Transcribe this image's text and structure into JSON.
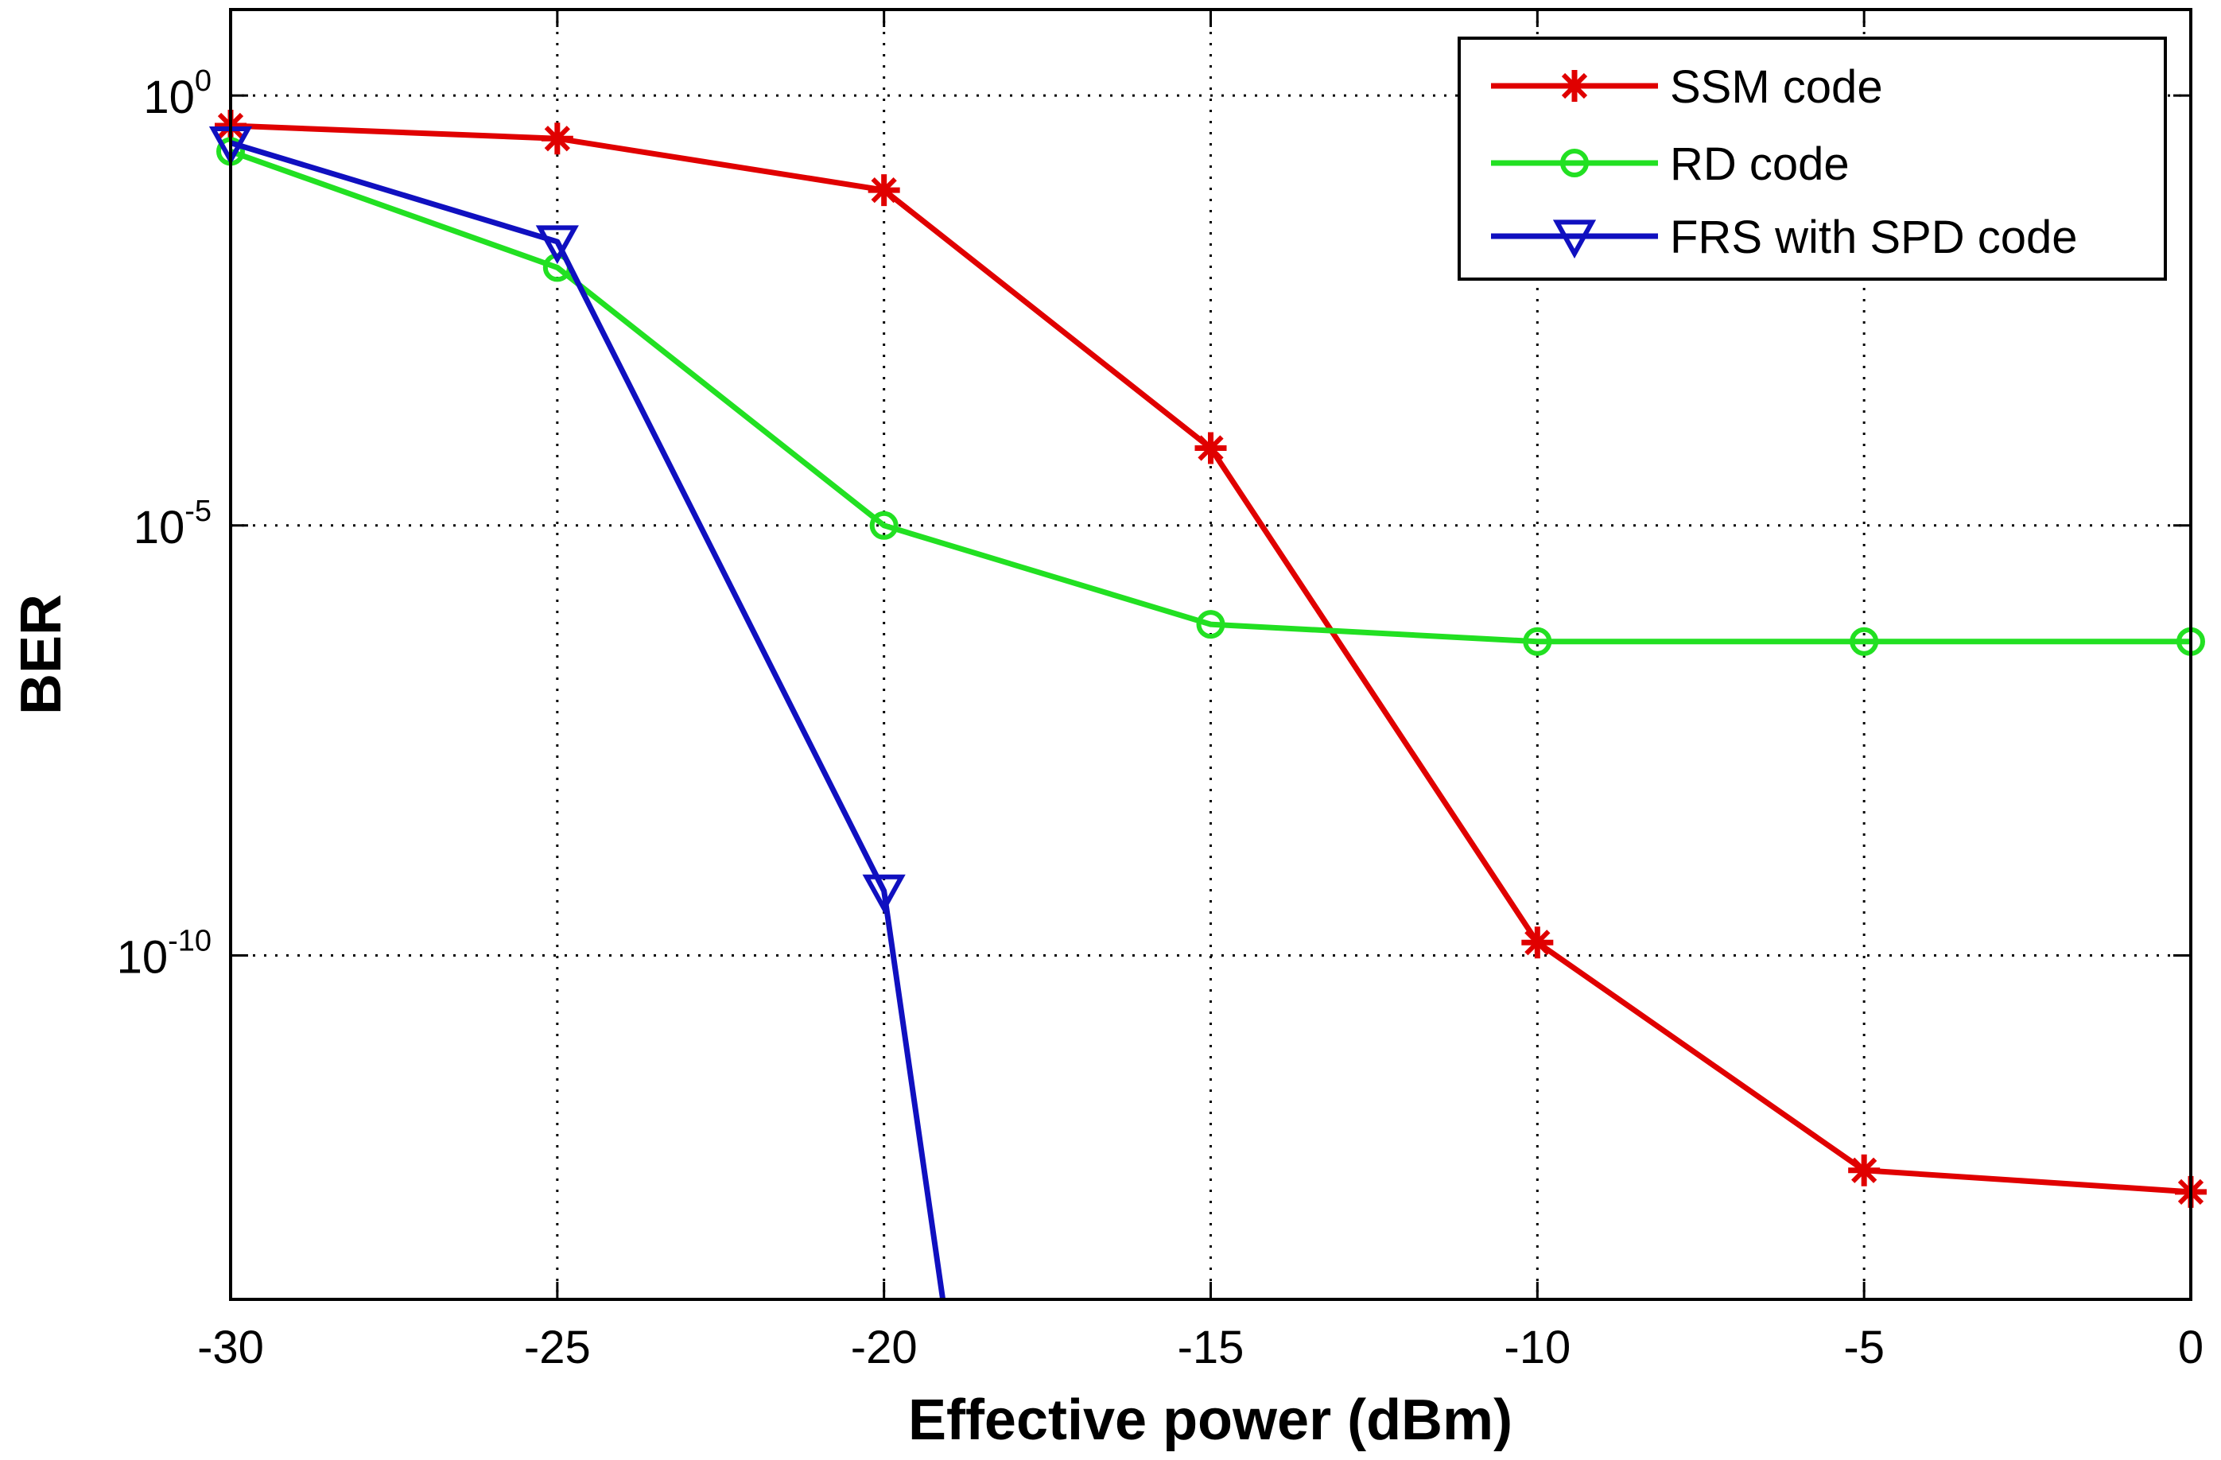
{
  "chart_data": {
    "type": "line",
    "title": "",
    "xlabel": "Effective power (dBm)",
    "ylabel": "BER",
    "yscale": "log",
    "xlim": [
      -30,
      0
    ],
    "ylim_exp": [
      -14,
      1
    ],
    "grid": true,
    "legend_position": "top-right",
    "x_ticks": [
      {
        "value": -30,
        "label": "-30"
      },
      {
        "value": -25,
        "label": "-25"
      },
      {
        "value": -20,
        "label": "-20"
      },
      {
        "value": -15,
        "label": "-15"
      },
      {
        "value": -10,
        "label": "-10"
      },
      {
        "value": -5,
        "label": "-5"
      },
      {
        "value": 0,
        "label": "0"
      }
    ],
    "y_ticks": [
      {
        "exp": 0,
        "base": "10",
        "sup": "0"
      },
      {
        "exp": -5,
        "base": "10",
        "sup": "-5"
      },
      {
        "exp": -10,
        "base": "10",
        "sup": "-10"
      }
    ],
    "series": [
      {
        "name": "SSM code",
        "color": "#e00000",
        "marker": "star",
        "points": [
          {
            "x": -30,
            "log10_y": -0.35
          },
          {
            "x": -25,
            "log10_y": -0.5
          },
          {
            "x": -20,
            "log10_y": -1.1
          },
          {
            "x": -15,
            "log10_y": -4.1
          },
          {
            "x": -10,
            "log10_y": -9.85
          },
          {
            "x": -5,
            "log10_y": -12.5
          },
          {
            "x": 0,
            "log10_y": -12.75
          }
        ]
      },
      {
        "name": "RD code",
        "color": "#22e022",
        "marker": "circle",
        "points": [
          {
            "x": -30,
            "log10_y": -0.65
          },
          {
            "x": -25,
            "log10_y": -2.0
          },
          {
            "x": -20,
            "log10_y": -5.0
          },
          {
            "x": -15,
            "log10_y": -6.15
          },
          {
            "x": -10,
            "log10_y": -6.35
          },
          {
            "x": -5,
            "log10_y": -6.35
          },
          {
            "x": 0,
            "log10_y": -6.35
          }
        ]
      },
      {
        "name": "FRS with SPD code",
        "color": "#1010c0",
        "marker": "triangle-down",
        "points": [
          {
            "x": -30,
            "log10_y": -0.55
          },
          {
            "x": -25,
            "log10_y": -1.7
          },
          {
            "x": -20,
            "log10_y": -9.25
          },
          {
            "x": -19.1,
            "log10_y": -14.0
          }
        ],
        "marker_count": 3
      }
    ]
  }
}
